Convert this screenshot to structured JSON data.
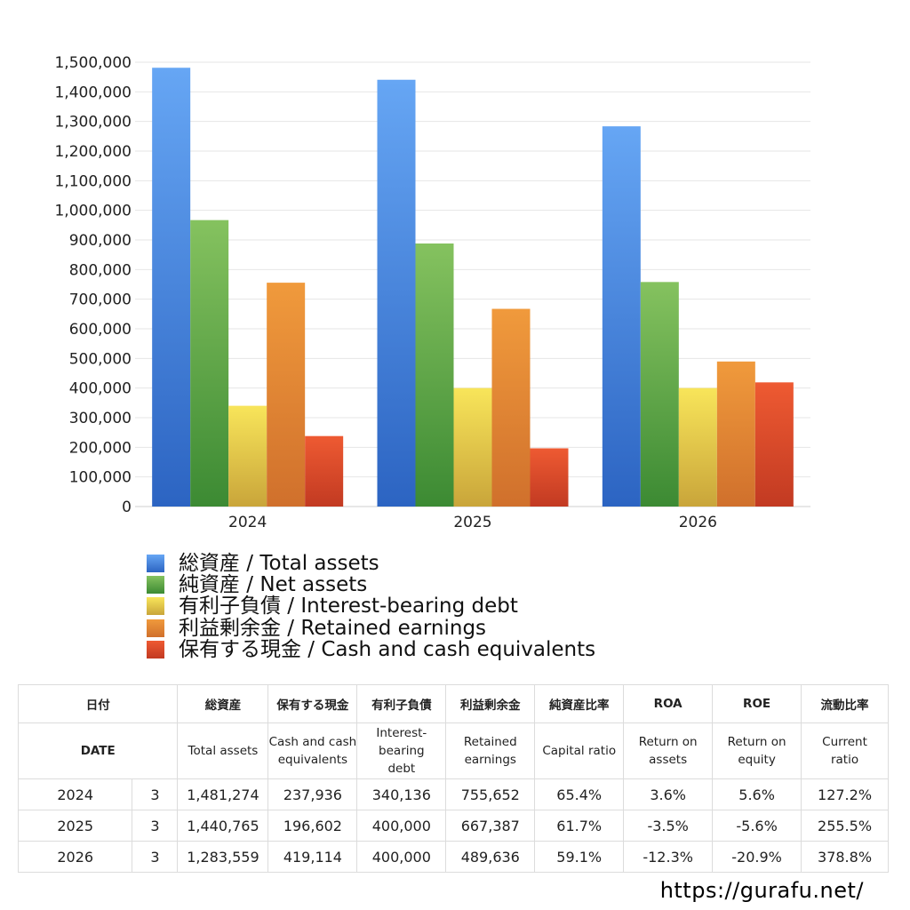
{
  "chart_data": {
    "type": "bar",
    "categories": [
      "2024",
      "2025",
      "2026"
    ],
    "ylim": [
      0,
      1500000
    ],
    "yticks": [
      "0",
      "100,000",
      "200,000",
      "300,000",
      "400,000",
      "500,000",
      "600,000",
      "700,000",
      "800,000",
      "900,000",
      "1,000,000",
      "1,100,000",
      "1,200,000",
      "1,300,000",
      "1,400,000",
      "1,500,000"
    ],
    "grid": true,
    "legend_position": "bottom",
    "series": [
      {
        "name": "総資産 / Total assets",
        "values": [
          1481274,
          1440765,
          1283559
        ],
        "color_top": "#66a6f4",
        "color_bottom": "#2c64c2"
      },
      {
        "name": "純資産 / Net assets",
        "values": [
          967000,
          888000,
          758000
        ],
        "color_top": "#85c25f",
        "color_bottom": "#3c8a33"
      },
      {
        "name": "有利子負債 / Interest-bearing debt",
        "values": [
          340136,
          400000,
          400000
        ],
        "color_top": "#f8e55a",
        "color_bottom": "#c9a53a"
      },
      {
        "name": "利益剰余金 / Retained earnings",
        "values": [
          755652,
          667387,
          489636
        ],
        "color_top": "#f09a3c",
        "color_bottom": "#d0702c"
      },
      {
        "name": "保有する現金 /  Cash and cash equivalents",
        "values": [
          237936,
          196602,
          419114
        ],
        "color_top": "#ee5a32",
        "color_bottom": "#c23a22"
      }
    ]
  },
  "table": {
    "headers_ja": [
      "日付",
      "",
      "総資産",
      "保有する現金",
      "有利子負債",
      "利益剰余金",
      "純資産比率",
      "ROA",
      "ROE",
      "流動比率"
    ],
    "headers_en": [
      "DATE",
      "",
      "Total assets",
      "Cash and cash equivalents",
      "Interest-bearing debt",
      "Retained earnings",
      "Capital ratio",
      "Return on assets",
      "Return on equity",
      "Current ratio"
    ],
    "rows": [
      {
        "year": "2024",
        "month": "3",
        "cells": [
          "1,481,274",
          "237,936",
          "340,136",
          "755,652",
          "65.4%",
          "3.6%",
          "5.6%",
          "127.2%"
        ],
        "neg": [
          false,
          false,
          false,
          false,
          false,
          false,
          false,
          false
        ]
      },
      {
        "year": "2025",
        "month": "3",
        "cells": [
          "1,440,765",
          "196,602",
          "400,000",
          "667,387",
          "61.7%",
          "-3.5%",
          "-5.6%",
          "255.5%"
        ],
        "neg": [
          false,
          false,
          false,
          false,
          false,
          true,
          true,
          false
        ]
      },
      {
        "year": "2026",
        "month": "3",
        "cells": [
          "1,283,559",
          "419,114",
          "400,000",
          "489,636",
          "59.1%",
          "-12.3%",
          "-20.9%",
          "378.8%"
        ],
        "neg": [
          false,
          false,
          false,
          false,
          false,
          true,
          true,
          false
        ]
      }
    ]
  },
  "footer": {
    "site": "https://gurafu.net/"
  }
}
